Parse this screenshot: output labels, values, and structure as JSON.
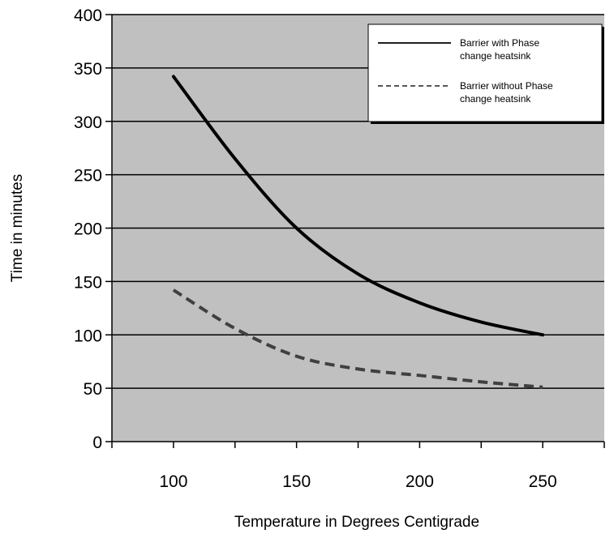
{
  "chart_data": {
    "type": "line",
    "title": "",
    "xlabel": "Temperature in Degrees Centigrade",
    "ylabel": "Time in minutes",
    "xlim": [
      75,
      275
    ],
    "ylim": [
      0,
      400
    ],
    "x_ticks": [
      100,
      150,
      200,
      250
    ],
    "y_ticks": [
      0,
      50,
      100,
      150,
      200,
      250,
      300,
      350,
      400
    ],
    "grid": "horizontal",
    "plot_background": "#c0c0c0",
    "legend": {
      "placement": "top-right",
      "entries": [
        {
          "lines": [
            "Barrier with Phase",
            "change heatsink"
          ],
          "style": "solid",
          "color": "#000000"
        },
        {
          "lines": [
            "Barrier without  Phase",
            "change heatsink"
          ],
          "style": "dashed",
          "color": "#404040"
        }
      ]
    },
    "series": [
      {
        "name": "Barrier with Phase change heatsink",
        "style": "solid",
        "color": "#000000",
        "x": [
          100,
          125,
          150,
          175,
          200,
          225,
          250
        ],
        "y": [
          342,
          265,
          200,
          157,
          130,
          112,
          100
        ]
      },
      {
        "name": "Barrier without  Phase change heatsink",
        "style": "dashed",
        "color": "#404040",
        "x": [
          100,
          125,
          150,
          175,
          200,
          225,
          250
        ],
        "y": [
          142,
          106,
          80,
          68,
          62,
          56,
          51
        ]
      }
    ]
  }
}
